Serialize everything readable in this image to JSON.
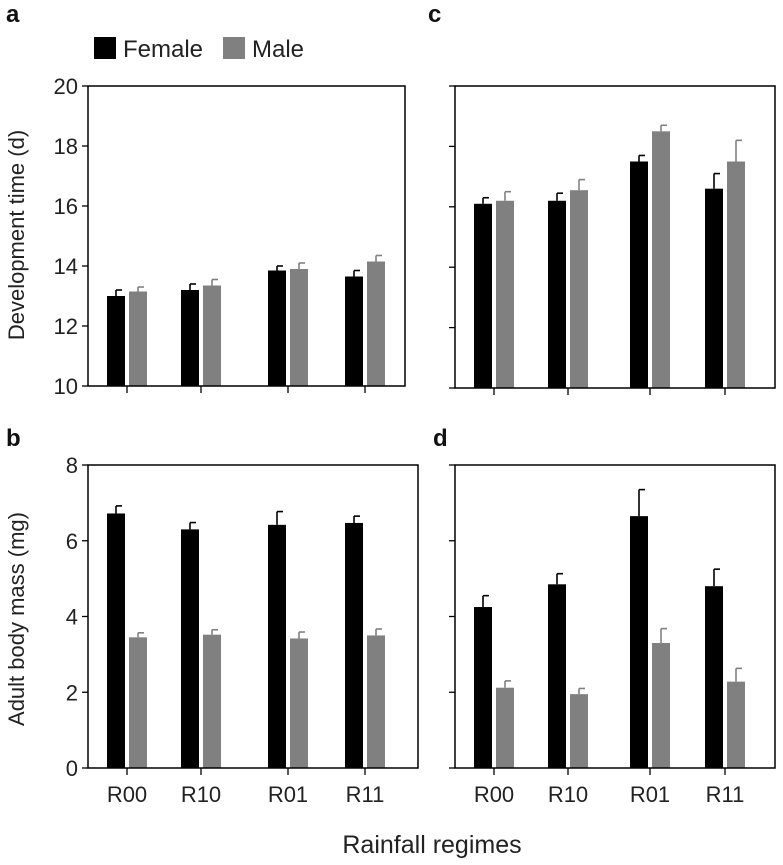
{
  "figure": {
    "xlabel": "Rainfall regimes",
    "legend": [
      {
        "name": "Female",
        "color": "#000000"
      },
      {
        "name": "Male",
        "color": "#808080"
      }
    ]
  },
  "chart_data": [
    {
      "panel": "a",
      "type": "bar",
      "categories": [
        "R00",
        "R10",
        "R01",
        "R11"
      ],
      "ylabel": "Development time (d)",
      "ylim": [
        10,
        20
      ],
      "yticks": [
        10,
        12,
        14,
        16,
        18,
        20
      ],
      "show_ytick_labels": true,
      "show_xtick_labels": false,
      "series": [
        {
          "name": "Female",
          "color": "#000000",
          "values": [
            13.0,
            13.2,
            13.85,
            13.65
          ],
          "errors": [
            0.2,
            0.2,
            0.15,
            0.2
          ]
        },
        {
          "name": "Male",
          "color": "#808080",
          "values": [
            13.15,
            13.35,
            13.9,
            14.15
          ],
          "errors": [
            0.15,
            0.2,
            0.2,
            0.2
          ]
        }
      ]
    },
    {
      "panel": "c",
      "type": "bar",
      "categories": [
        "R00",
        "R10",
        "R01",
        "R11"
      ],
      "ylabel": "",
      "ylim": [
        10,
        20
      ],
      "yticks": [
        10,
        12,
        14,
        16,
        18,
        20
      ],
      "show_ytick_labels": false,
      "show_xtick_labels": false,
      "series": [
        {
          "name": "Female",
          "color": "#000000",
          "values": [
            16.1,
            16.2,
            17.5,
            16.6
          ],
          "errors": [
            0.2,
            0.25,
            0.2,
            0.5
          ]
        },
        {
          "name": "Male",
          "color": "#808080",
          "values": [
            16.2,
            16.55,
            18.5,
            17.5
          ],
          "errors": [
            0.3,
            0.35,
            0.2,
            0.7
          ]
        }
      ]
    },
    {
      "panel": "b",
      "type": "bar",
      "categories": [
        "R00",
        "R10",
        "R01",
        "R11"
      ],
      "ylabel": "Adult body mass (mg)",
      "ylim": [
        0,
        8
      ],
      "yticks": [
        0,
        2,
        4,
        6,
        8
      ],
      "show_ytick_labels": true,
      "show_xtick_labels": true,
      "series": [
        {
          "name": "Female",
          "color": "#000000",
          "values": [
            6.72,
            6.3,
            6.42,
            6.47
          ],
          "errors": [
            0.2,
            0.18,
            0.35,
            0.18
          ]
        },
        {
          "name": "Male",
          "color": "#808080",
          "values": [
            3.45,
            3.52,
            3.42,
            3.5
          ],
          "errors": [
            0.12,
            0.13,
            0.17,
            0.17
          ]
        }
      ]
    },
    {
      "panel": "d",
      "type": "bar",
      "categories": [
        "R00",
        "R10",
        "R01",
        "R11"
      ],
      "ylabel": "",
      "ylim": [
        0,
        8
      ],
      "yticks": [
        0,
        2,
        4,
        6,
        8
      ],
      "show_ytick_labels": false,
      "show_xtick_labels": true,
      "series": [
        {
          "name": "Female",
          "color": "#000000",
          "values": [
            4.25,
            4.85,
            6.65,
            4.8
          ],
          "errors": [
            0.3,
            0.28,
            0.7,
            0.45
          ]
        },
        {
          "name": "Male",
          "color": "#808080",
          "values": [
            2.12,
            1.95,
            3.3,
            2.28
          ],
          "errors": [
            0.18,
            0.15,
            0.38,
            0.35
          ]
        }
      ]
    }
  ]
}
